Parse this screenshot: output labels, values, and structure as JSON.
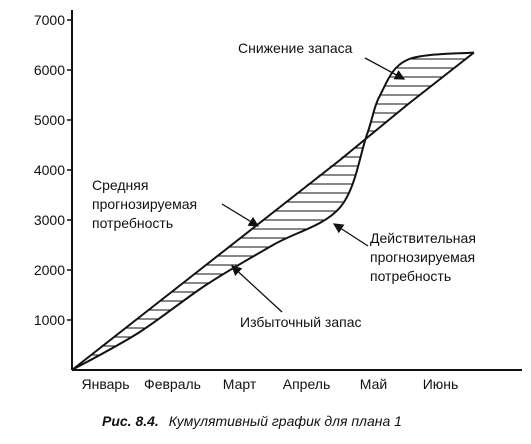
{
  "chart_data": {
    "type": "line",
    "categories": [
      "Январь",
      "Февраль",
      "Март",
      "Апрель",
      "Май",
      "Июнь"
    ],
    "ylim": [
      0,
      7000
    ],
    "y_ticks": [
      1000,
      2000,
      3000,
      4000,
      5000,
      6000,
      7000
    ],
    "grid": false,
    "series": [
      {
        "name": "Средняя прогнозируемая потребность",
        "x": [
          0,
          1,
          2,
          3,
          4,
          5,
          6
        ],
        "values": [
          0,
          1050,
          2100,
          3150,
          4200,
          5300,
          6350
        ]
      },
      {
        "name": "Действительная прогнозируемая потребность",
        "x": [
          0,
          1,
          2,
          3,
          4,
          4.4,
          4.6,
          5,
          6
        ],
        "values": [
          0,
          750,
          1700,
          2500,
          3250,
          4700,
          5500,
          6200,
          6350
        ]
      }
    ],
    "annotations": {
      "middle": [
        "Средняя",
        "прогнозируемая",
        "потребность"
      ],
      "actual": [
        "Действительная",
        "прогнозируемая",
        "потребность"
      ],
      "excess": "Избыточный запас",
      "reduction": "Снижение запаса"
    },
    "shading": "horizontal-hatch"
  },
  "caption": {
    "prefix": "Рис.  8.4.",
    "text": "Кумулятивный график для плана 1"
  },
  "colors": {
    "ink": "#111111",
    "background": "#ffffff"
  }
}
